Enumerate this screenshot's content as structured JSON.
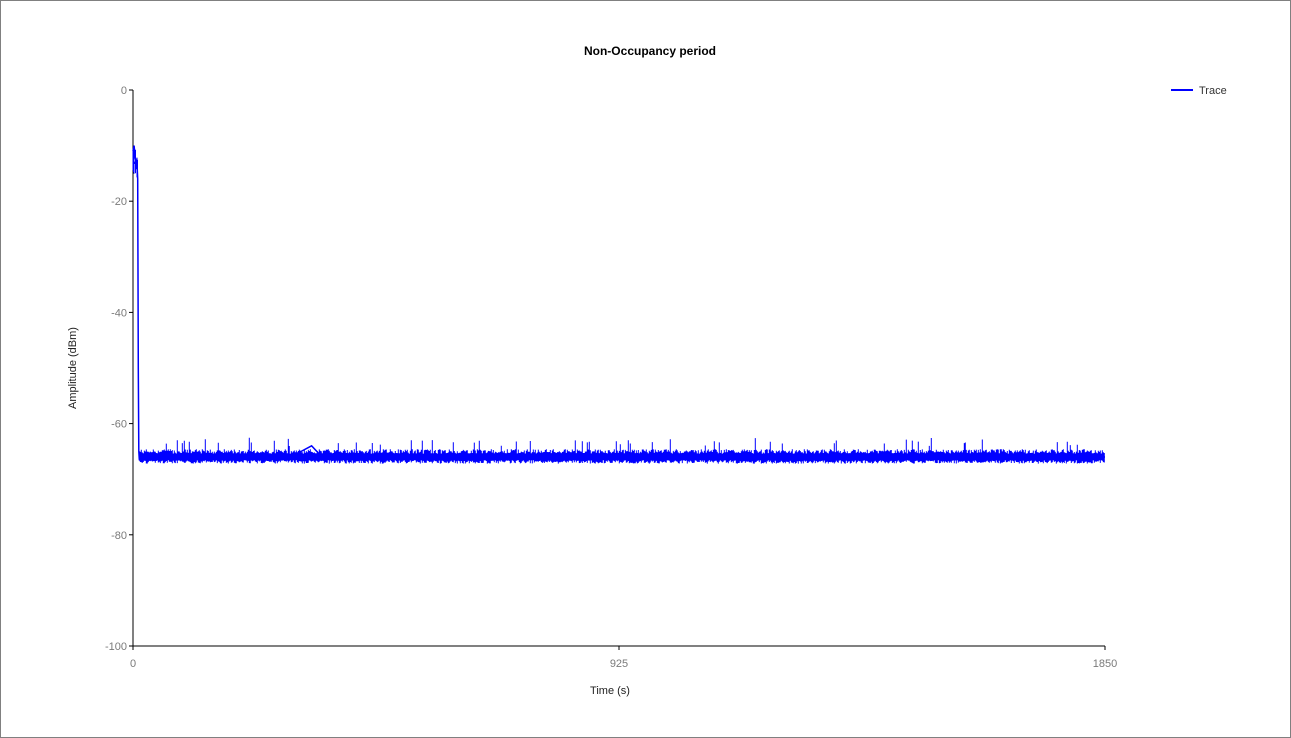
{
  "chart_data": {
    "type": "line",
    "title": "Non-Occupancy period",
    "xlabel": "Time (s)",
    "ylabel": "Amplitude (dBm)",
    "xlim": [
      0,
      1850
    ],
    "ylim": [
      -100,
      0
    ],
    "x_ticks": [
      0,
      925,
      1850
    ],
    "y_ticks": [
      0,
      -20,
      -40,
      -60,
      -80,
      -100
    ],
    "grid": false,
    "legend_position": "top-right",
    "series": [
      {
        "name": "Trace",
        "color": "#0000ff",
        "x": [
          0,
          2,
          4,
          6,
          8,
          9,
          10,
          11,
          12,
          14,
          16,
          40,
          100,
          200,
          300,
          340,
          360,
          400,
          500,
          600,
          700,
          800,
          900,
          1000,
          1100,
          1200,
          1300,
          1400,
          1500,
          1600,
          1700,
          1800,
          1850
        ],
        "y": [
          -11,
          -10,
          -12,
          -13,
          -14,
          -16,
          -50,
          -65,
          -66.5,
          -66,
          -66,
          -66,
          -66,
          -66,
          -66,
          -64,
          -66,
          -66,
          -65.5,
          -66,
          -66,
          -66,
          -66,
          -66,
          -66,
          -66,
          -66,
          -66,
          -66,
          -66,
          -66,
          -66,
          -66
        ]
      }
    ]
  }
}
